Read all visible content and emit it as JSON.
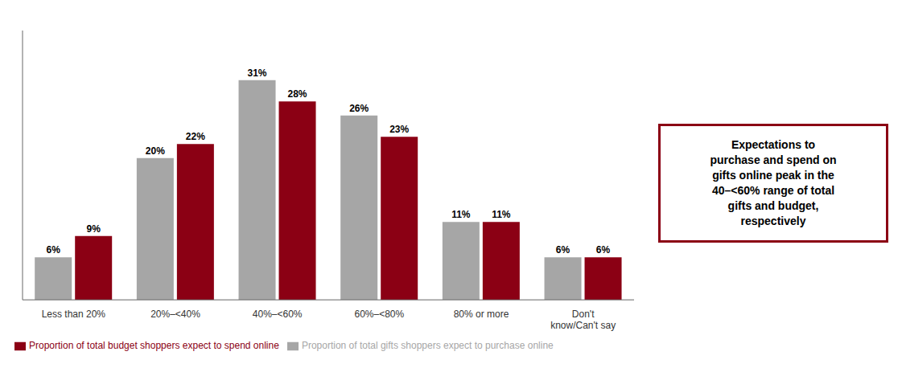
{
  "chart_data": {
    "type": "bar",
    "categories": [
      "Less than 20%",
      "20%–<40%",
      "40%–<60%",
      "60%–<80%",
      "80% or more",
      "Don't\nknow/Can't say"
    ],
    "series": [
      {
        "name": "Proportion of total gifts shoppers expect to purchase online",
        "color": "#a6a6a6",
        "values": [
          6,
          20,
          31,
          26,
          11,
          6
        ],
        "value_labels": [
          "6%",
          "20%",
          "31%",
          "26%",
          "11%",
          "6%"
        ]
      },
      {
        "name": "Proportion of total budget shoppers expect to spend online",
        "color": "#8b0014",
        "values": [
          9,
          22,
          28,
          23,
          11,
          6
        ],
        "value_labels": [
          "9%",
          "22%",
          "28%",
          "23%",
          "11%",
          "6%"
        ]
      }
    ],
    "ylim": [
      0,
      38
    ],
    "tick_labels": "x",
    "grid": false,
    "legend": "bottom",
    "data_labels": true,
    "annotation": "Expectations to\npurchase and spend on\ngifts online peak in the\n40–<60% range of total\ngifts and budget,\nrespectively"
  }
}
